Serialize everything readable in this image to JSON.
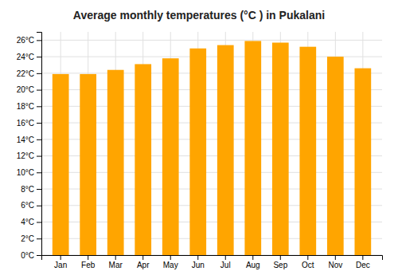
{
  "chart_data": {
    "type": "bar",
    "title": "Average monthly temperatures (°C ) in Pukalani",
    "categories": [
      "Jan",
      "Feb",
      "Mar",
      "Apr",
      "May",
      "Jun",
      "Jul",
      "Aug",
      "Sep",
      "Oct",
      "Nov",
      "Dec"
    ],
    "values": [
      21.9,
      21.9,
      22.4,
      23.1,
      23.8,
      25.0,
      25.4,
      25.9,
      25.7,
      25.2,
      24.0,
      22.6
    ],
    "color": "#FFA500",
    "ylim": [
      0,
      27
    ],
    "yticks": [
      {
        "value": 0,
        "label": "0°C"
      },
      {
        "value": 2,
        "label": "2°C"
      },
      {
        "value": 4,
        "label": "4°C"
      },
      {
        "value": 6,
        "label": "6°C"
      },
      {
        "value": 8,
        "label": "8°C"
      },
      {
        "value": 10,
        "label": "10°C"
      },
      {
        "value": 12,
        "label": "12°C"
      },
      {
        "value": 14,
        "label": "14°C"
      },
      {
        "value": 16,
        "label": "16°C"
      },
      {
        "value": 18,
        "label": "18°C"
      },
      {
        "value": 20,
        "label": "20°C"
      },
      {
        "value": 22,
        "label": "22°C"
      },
      {
        "value": 24,
        "label": "24°C"
      },
      {
        "value": 26,
        "label": "26°C"
      }
    ],
    "grid": true
  }
}
